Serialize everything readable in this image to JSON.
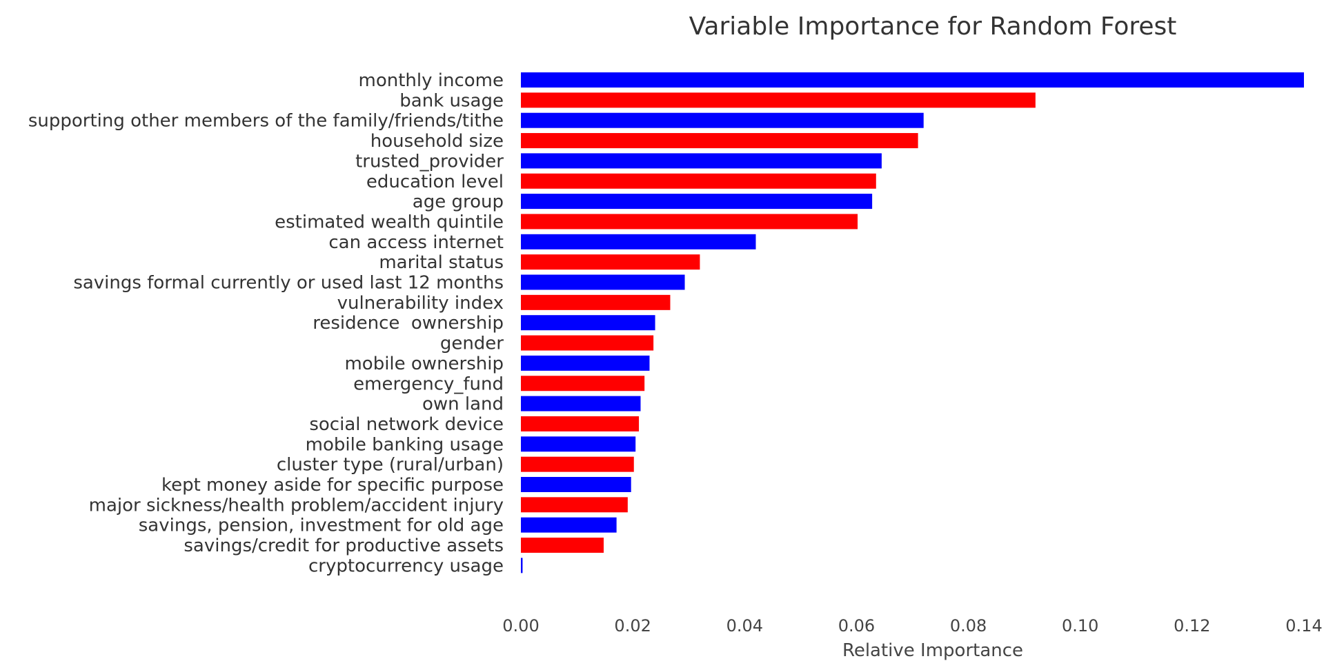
{
  "chart_data": {
    "type": "bar",
    "orientation": "horizontal",
    "title": "Variable Importance for Random Forest",
    "xlabel": "Relative Importance",
    "ylabel": "",
    "xlim": [
      0,
      0.14
    ],
    "grid": false,
    "legend": "none",
    "x_ticks": [
      {
        "value": 0.0,
        "label": "0.00"
      },
      {
        "value": 0.02,
        "label": "0.02"
      },
      {
        "value": 0.04,
        "label": "0.04"
      },
      {
        "value": 0.06,
        "label": "0.06"
      },
      {
        "value": 0.08,
        "label": "0.08"
      },
      {
        "value": 0.1,
        "label": "0.10"
      },
      {
        "value": 0.12,
        "label": "0.12"
      },
      {
        "value": 0.14,
        "label": "0.14"
      }
    ],
    "colors": [
      "#0000ff",
      "#ff0000"
    ],
    "categories": [
      "monthly income",
      "bank usage",
      "supporting other members of the family/friends/tithe",
      "household size",
      "trusted_provider",
      "education level",
      "age group",
      "estimated wealth quintile",
      "can access internet",
      "marital status",
      "savings formal currently or used last 12 months",
      "vulnerability index",
      "residence  ownership",
      "gender",
      "mobile ownership",
      "emergency_fund",
      "own land",
      "social network device",
      "mobile banking usage",
      "cluster type (rural/urban)",
      "kept money aside for specific purpose",
      "major sickness/health problem/accident injury",
      "savings, pension, investment for old age",
      "savings/credit for productive assets",
      "cryptocurrency usage"
    ],
    "values": [
      0.14,
      0.092,
      0.072,
      0.071,
      0.0645,
      0.0635,
      0.0628,
      0.0602,
      0.042,
      0.032,
      0.0293,
      0.0267,
      0.024,
      0.0237,
      0.023,
      0.0221,
      0.0214,
      0.0211,
      0.0205,
      0.0202,
      0.0197,
      0.0191,
      0.0171,
      0.0148,
      0.0003
    ]
  }
}
